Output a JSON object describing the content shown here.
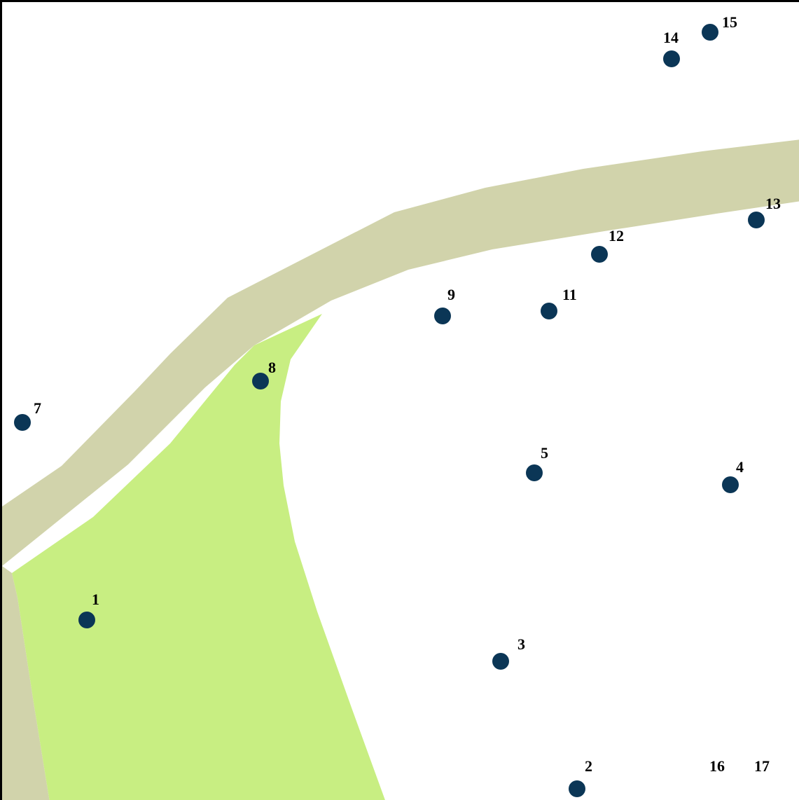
{
  "map": {
    "colors": {
      "background": "#ffffff",
      "road": "#d1d3ab",
      "park": "#c8ee82",
      "marker": "#0b3656",
      "label": "#000000",
      "border": "#000000"
    },
    "markers": [
      {
        "id": "1",
        "label": "1"
      },
      {
        "id": "2",
        "label": "2"
      },
      {
        "id": "3",
        "label": "3"
      },
      {
        "id": "4",
        "label": "4"
      },
      {
        "id": "5",
        "label": "5"
      },
      {
        "id": "7",
        "label": "7"
      },
      {
        "id": "8",
        "label": "8"
      },
      {
        "id": "9",
        "label": "9"
      },
      {
        "id": "11",
        "label": "11"
      },
      {
        "id": "12",
        "label": "12"
      },
      {
        "id": "13",
        "label": "13"
      },
      {
        "id": "14",
        "label": "14"
      },
      {
        "id": "15",
        "label": "15"
      }
    ],
    "extra_labels": [
      "16",
      "17"
    ]
  }
}
